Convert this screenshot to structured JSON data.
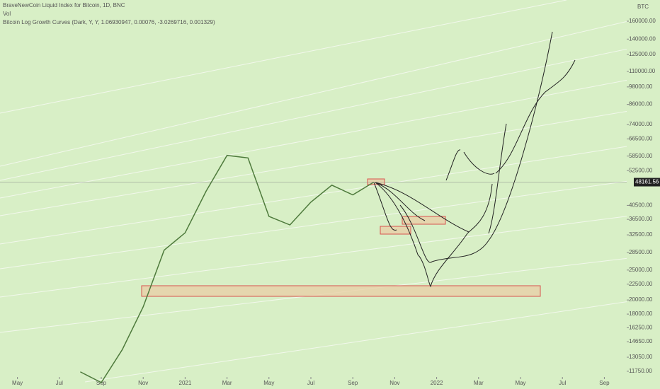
{
  "chart_data": {
    "type": "line",
    "title": "BraveNewCoin Liquid Index for Bitcoin, 1D, BNC",
    "subtitle": "Vol",
    "indicator": "Bitcoin Log Growth Curves (Dark, Y, Y, 1.06930947, 0.00076, -3.0269716, 0.001329)",
    "currency": "BTC",
    "log_scale": true,
    "x": [
      "2020-08",
      "2020-09",
      "2020-10",
      "2020-11",
      "2020-12",
      "2021-01",
      "2021-02",
      "2021-03",
      "2021-04",
      "2021-05",
      "2021-06",
      "2021-07",
      "2021-08",
      "2021-09",
      "2021-10"
    ],
    "series": [
      {
        "name": "BTC",
        "color": "#4e7a3c",
        "values": [
          11700,
          10800,
          13800,
          19000,
          29000,
          33000,
          45000,
          58800,
          57700,
          37300,
          35000,
          41500,
          47100,
          43800,
          48161.56
        ]
      }
    ],
    "last_price": 48161.56,
    "xlim": [
      "2020-04",
      "2022-10"
    ],
    "xticks": [
      {
        "value": "2020-05",
        "label": "May"
      },
      {
        "value": "2020-07",
        "label": "Jul"
      },
      {
        "value": "2020-09",
        "label": "Sep"
      },
      {
        "value": "2020-11",
        "label": "Nov"
      },
      {
        "value": "2021-01",
        "label": "2021"
      },
      {
        "value": "2021-03",
        "label": "Mar"
      },
      {
        "value": "2021-05",
        "label": "May"
      },
      {
        "value": "2021-07",
        "label": "Jul"
      },
      {
        "value": "2021-09",
        "label": "Sep"
      },
      {
        "value": "2021-11",
        "label": "Nov"
      },
      {
        "value": "2022-01",
        "label": "2022"
      },
      {
        "value": "2022-03",
        "label": "Mar"
      },
      {
        "value": "2022-05",
        "label": "May"
      },
      {
        "value": "2022-07",
        "label": "Jul"
      },
      {
        "value": "2022-09",
        "label": "Sep"
      }
    ],
    "ylim": [
      11320,
      187400
    ],
    "yticks": [
      {
        "value": 11750,
        "label": "11750.00"
      },
      {
        "value": 13050,
        "label": "13050.00"
      },
      {
        "value": 14650,
        "label": "14650.00"
      },
      {
        "value": 16250,
        "label": "16250.00"
      },
      {
        "value": 18000,
        "label": "18000.00"
      },
      {
        "value": 20000,
        "label": "20000.00"
      },
      {
        "value": 22500,
        "label": "22500.00"
      },
      {
        "value": 25000,
        "label": "25000.00"
      },
      {
        "value": 28500,
        "label": "28500.00"
      },
      {
        "value": 32500,
        "label": "32500.00"
      },
      {
        "value": 36500,
        "label": "36500.00"
      },
      {
        "value": 40500,
        "label": "40500.00"
      },
      {
        "value": 52500,
        "label": "52500.00"
      },
      {
        "value": 58500,
        "label": "58500.00"
      },
      {
        "value": 66500,
        "label": "66500.00"
      },
      {
        "value": 74000,
        "label": "74000.00"
      },
      {
        "value": 86000,
        "label": "86000.00"
      },
      {
        "value": 98000,
        "label": "98000.00"
      },
      {
        "value": 110000,
        "label": "110000.00"
      },
      {
        "value": 125000,
        "label": "125000.00"
      },
      {
        "value": 140000,
        "label": "140000.00"
      },
      {
        "value": 160000,
        "label": "160000.00"
      }
    ]
  }
}
